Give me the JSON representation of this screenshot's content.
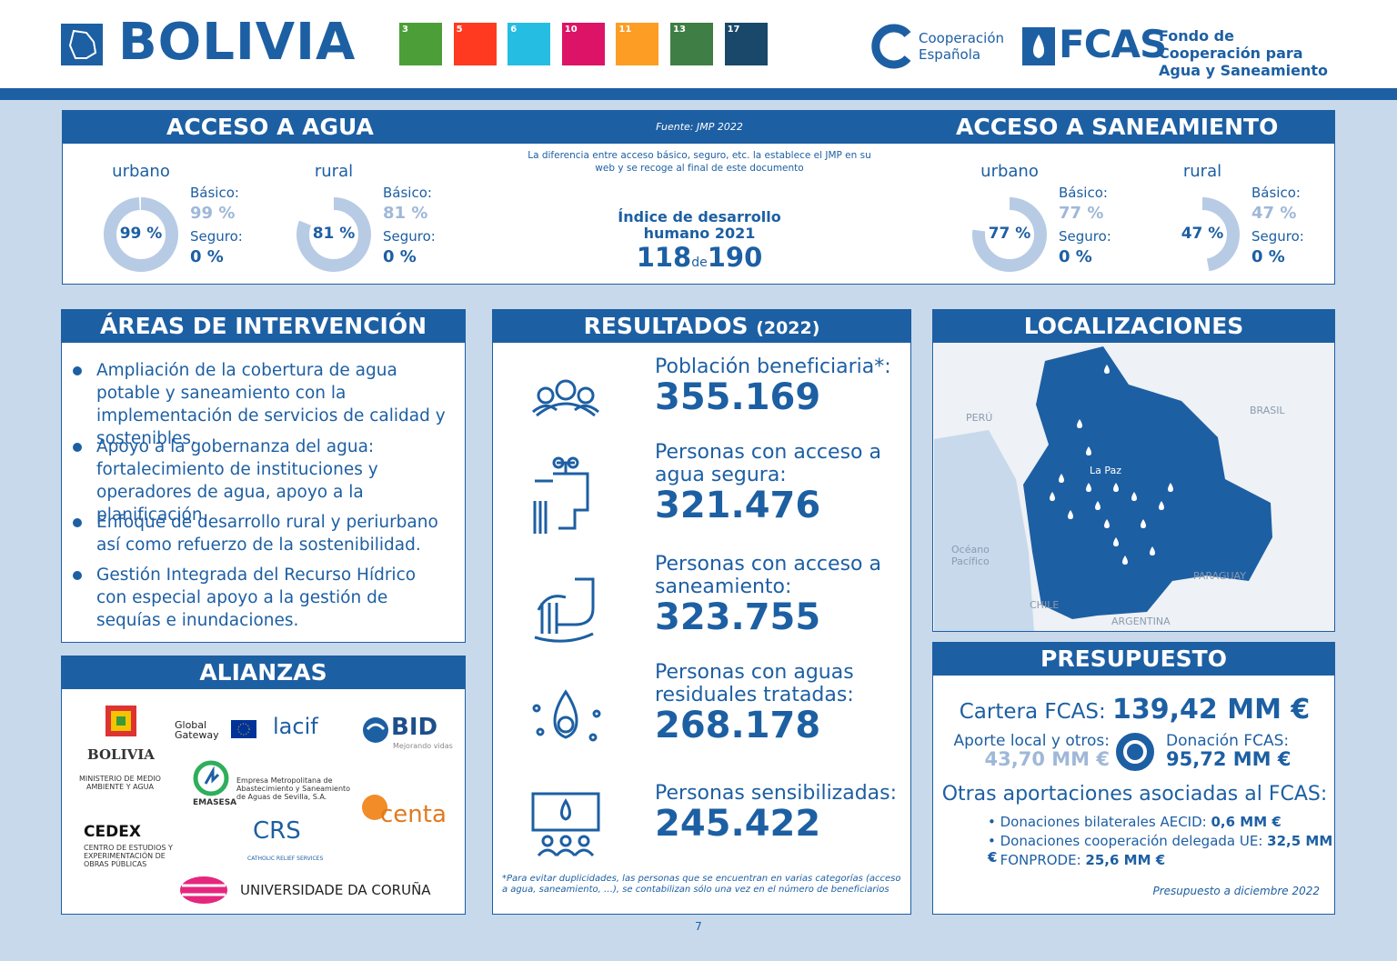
{
  "header": {
    "title": "BOLIVIA",
    "sdg": [
      "3",
      "5",
      "6",
      "10",
      "11",
      "13",
      "17"
    ],
    "partner": "Cooperación Española",
    "fcas": "FCAS",
    "fcas_name": "Fondo de Cooperación para Agua y Saneamiento"
  },
  "access": {
    "water_title": "ACCESO A AGUA",
    "source": "Fuente: JMP 2022",
    "sanitation_title": "ACCESO A SANEAMIENTO",
    "note": "La diferencia entre acceso básico, seguro, etc. la establece el JMP en su web y se recoge al final de este documento",
    "idh_label": "Índice de desarrollo humano 2021",
    "idh_rank": "118",
    "idh_de": "de",
    "idh_total": "190",
    "groups": [
      {
        "area": "urbano",
        "pct": 99,
        "pct_label": "99 %",
        "basic_label": "Básico:",
        "basic": "99 %",
        "safe_label": "Seguro:",
        "safe": "0 %"
      },
      {
        "area": "rural",
        "pct": 81,
        "pct_label": "81 %",
        "basic_label": "Básico:",
        "basic": "81 %",
        "safe_label": "Seguro:",
        "safe": "0 %"
      },
      {
        "area": "urbano",
        "pct": 77,
        "pct_label": "77 %",
        "basic_label": "Básico:",
        "basic": "77 %",
        "safe_label": "Seguro:",
        "safe": "0 %"
      },
      {
        "area": "rural",
        "pct": 47,
        "pct_label": "47 %",
        "basic_label": "Básico:",
        "basic": "47 %",
        "safe_label": "Seguro:",
        "safe": "0 %"
      }
    ]
  },
  "areas": {
    "title": "ÁREAS DE INTERVENCIÓN",
    "items": [
      "Ampliación de la cobertura de agua potable y saneamiento con la implementación de servicios de calidad y sostenibles.",
      "Apoyo a la gobernanza del agua: fortalecimiento de instituciones y operadores de agua, apoyo a la planificación.",
      "Enfoque de desarrollo rural y periurbano así como refuerzo de la sostenibilidad.",
      "Gestión Integrada del Recurso Hídrico con especial apoyo a la gestión de sequías e inundaciones."
    ]
  },
  "alliances": {
    "title": "ALIANZAS",
    "bolivia": "BOLIVIA",
    "ministry": "MINISTERIO DE MEDIO AMBIENTE Y AGUA",
    "gateway": "Global Gateway",
    "lacif": "lacif",
    "bid": "BID",
    "bid_sub": "Mejorando vidas",
    "emasesa": "EMASESA",
    "emasesa_name": "Empresa Metropolitana de Abastecimiento y Saneamiento de Aguas de Sevilla, S.A.",
    "cedex": "CEDEX",
    "cedex_name": "CENTRO DE ESTUDIOS Y EXPERIMENTACIÓN DE OBRAS PÚBLICAS",
    "crs": "CRS",
    "crs_name": "CATHOLIC RELIEF SERVICES",
    "centa": "centa",
    "coruna": "UNIVERSIDADE DA CORUÑA"
  },
  "results": {
    "title": "RESULTADOS",
    "year": "(2022)",
    "items": [
      {
        "label": "Población beneficiaria*:",
        "value": "355.169"
      },
      {
        "label": "Personas con acceso a agua segura:",
        "value": "321.476"
      },
      {
        "label": "Personas con acceso a saneamiento:",
        "value": "323.755"
      },
      {
        "label": "Personas con aguas residuales tratadas:",
        "value": "268.178"
      },
      {
        "label": "Personas sensibilizadas:",
        "value": "245.422"
      }
    ],
    "footnote": "*Para evitar duplicidades, las personas que se encuentran en varias categorías (acceso a agua, saneamiento, …), se contabilizan sólo una vez en el número de beneficiarios"
  },
  "locations": {
    "title": "LOCALIZACIONES",
    "peru": "PERÚ",
    "brasil": "BRASIL",
    "la_paz": "La Paz",
    "ocean": "Océano Pacífico",
    "paraguay": "PARAGUAY",
    "chile": "CHILE",
    "argentina": "ARGENTINA"
  },
  "budget": {
    "title": "PRESUPUESTO",
    "portfolio_label": "Cartera FCAS:",
    "portfolio": "139,42 MM €",
    "local_label": "Aporte local y otros:",
    "local": "43,70 MM €",
    "donation_label": "Donación FCAS:",
    "donation": "95,72 MM €",
    "other_title": "Otras aportaciones asociadas al FCAS:",
    "others": [
      {
        "label": "Donaciones bilaterales AECID:",
        "value": "0,6 MM €"
      },
      {
        "label": "Donaciones cooperación delegada UE:",
        "value": "32,5 MM €"
      },
      {
        "label": "FONPRODE:",
        "value": "25,6 MM €"
      }
    ],
    "note": "Presupuesto a diciembre 2022"
  },
  "page": "7"
}
